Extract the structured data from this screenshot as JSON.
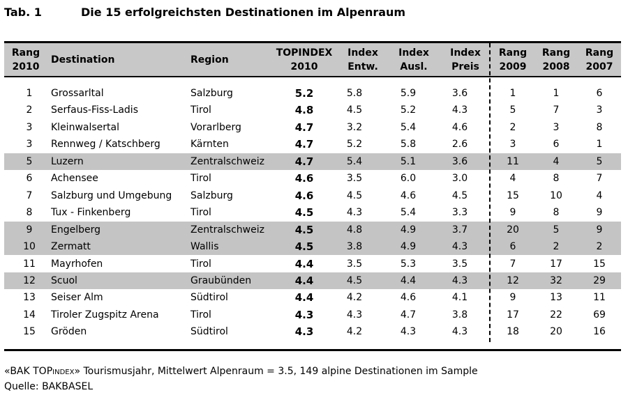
{
  "title": {
    "number": "Tab. 1",
    "text": "Die 15 erfolgreichsten Destinationen im Alpenraum"
  },
  "table": {
    "headers": {
      "rank": [
        "Rang",
        "2010"
      ],
      "destination": [
        "Destination"
      ],
      "region": [
        "Region"
      ],
      "topindex": [
        "TOPINDEX",
        "2010"
      ],
      "index_entw": [
        "Index",
        "Entw."
      ],
      "index_ausl": [
        "Index",
        "Ausl."
      ],
      "index_preis": [
        "Index",
        "Preis"
      ],
      "rang_2009": [
        "Rang",
        "2009"
      ],
      "rang_2008": [
        "Rang",
        "2008"
      ],
      "rang_2007": [
        "Rang",
        "2007"
      ]
    },
    "rows": [
      {
        "rank": "1",
        "destination": "Grossarltal",
        "region": "Salzburg",
        "topindex": "5.2",
        "index_entw": "5.8",
        "index_ausl": "5.9",
        "index_preis": "3.6",
        "rang_2009": "1",
        "rang_2008": "1",
        "rang_2007": "6",
        "highlighted": false
      },
      {
        "rank": "2",
        "destination": "Serfaus-Fiss-Ladis",
        "region": "Tirol",
        "topindex": "4.8",
        "index_entw": "4.5",
        "index_ausl": "5.2",
        "index_preis": "4.3",
        "rang_2009": "5",
        "rang_2008": "7",
        "rang_2007": "3",
        "highlighted": false
      },
      {
        "rank": "3",
        "destination": "Kleinwalsertal",
        "region": "Vorarlberg",
        "topindex": "4.7",
        "index_entw": "3.2",
        "index_ausl": "5.4",
        "index_preis": "4.6",
        "rang_2009": "2",
        "rang_2008": "3",
        "rang_2007": "8",
        "highlighted": false
      },
      {
        "rank": "3",
        "destination": "Rennweg / Katschberg",
        "region": "Kärnten",
        "topindex": "4.7",
        "index_entw": "5.2",
        "index_ausl": "5.8",
        "index_preis": "2.6",
        "rang_2009": "3",
        "rang_2008": "6",
        "rang_2007": "1",
        "highlighted": false
      },
      {
        "rank": "5",
        "destination": "Luzern",
        "region": "Zentralschweiz",
        "topindex": "4.7",
        "index_entw": "5.4",
        "index_ausl": "5.1",
        "index_preis": "3.6",
        "rang_2009": "11",
        "rang_2008": "4",
        "rang_2007": "5",
        "highlighted": true
      },
      {
        "rank": "6",
        "destination": "Achensee",
        "region": "Tirol",
        "topindex": "4.6",
        "index_entw": "3.5",
        "index_ausl": "6.0",
        "index_preis": "3.0",
        "rang_2009": "4",
        "rang_2008": "8",
        "rang_2007": "7",
        "highlighted": false
      },
      {
        "rank": "7",
        "destination": "Salzburg und Umgebung",
        "region": "Salzburg",
        "topindex": "4.6",
        "index_entw": "4.5",
        "index_ausl": "4.6",
        "index_preis": "4.5",
        "rang_2009": "15",
        "rang_2008": "10",
        "rang_2007": "4",
        "highlighted": false
      },
      {
        "rank": "8",
        "destination": "Tux - Finkenberg",
        "region": "Tirol",
        "topindex": "4.5",
        "index_entw": "4.3",
        "index_ausl": "5.4",
        "index_preis": "3.3",
        "rang_2009": "9",
        "rang_2008": "8",
        "rang_2007": "9",
        "highlighted": false
      },
      {
        "rank": "9",
        "destination": "Engelberg",
        "region": "Zentralschweiz",
        "topindex": "4.5",
        "index_entw": "4.8",
        "index_ausl": "4.9",
        "index_preis": "3.7",
        "rang_2009": "20",
        "rang_2008": "5",
        "rang_2007": "9",
        "highlighted": true
      },
      {
        "rank": "10",
        "destination": "Zermatt",
        "region": "Wallis",
        "topindex": "4.5",
        "index_entw": "3.8",
        "index_ausl": "4.9",
        "index_preis": "4.3",
        "rang_2009": "6",
        "rang_2008": "2",
        "rang_2007": "2",
        "highlighted": true
      },
      {
        "rank": "11",
        "destination": "Mayrhofen",
        "region": "Tirol",
        "topindex": "4.4",
        "index_entw": "3.5",
        "index_ausl": "5.3",
        "index_preis": "3.5",
        "rang_2009": "7",
        "rang_2008": "17",
        "rang_2007": "15",
        "highlighted": false
      },
      {
        "rank": "12",
        "destination": "Scuol",
        "region": "Graubünden",
        "topindex": "4.4",
        "index_entw": "4.5",
        "index_ausl": "4.4",
        "index_preis": "4.3",
        "rang_2009": "12",
        "rang_2008": "32",
        "rang_2007": "29",
        "highlighted": true
      },
      {
        "rank": "13",
        "destination": "Seiser Alm",
        "region": "Südtirol",
        "topindex": "4.4",
        "index_entw": "4.2",
        "index_ausl": "4.6",
        "index_preis": "4.1",
        "rang_2009": "9",
        "rang_2008": "13",
        "rang_2007": "11",
        "highlighted": false
      },
      {
        "rank": "14",
        "destination": "Tiroler Zugspitz Arena",
        "region": "Tirol",
        "topindex": "4.3",
        "index_entw": "4.3",
        "index_ausl": "4.7",
        "index_preis": "3.8",
        "rang_2009": "17",
        "rang_2008": "22",
        "rang_2007": "69",
        "highlighted": false
      },
      {
        "rank": "15",
        "destination": "Gröden",
        "region": "Südtirol",
        "topindex": "4.3",
        "index_entw": "4.2",
        "index_ausl": "4.3",
        "index_preis": "4.3",
        "rang_2009": "18",
        "rang_2008": "20",
        "rang_2007": "16",
        "highlighted": false
      }
    ]
  },
  "footnote": {
    "prefix": "«BAK TOP",
    "smallcaps": "index",
    "suffix": "» Tourismusjahr, Mittelwert Alpenraum = 3.5, 149 alpine Destinationen im Sample",
    "source": "Quelle: BAKBASEL"
  },
  "colors": {
    "highlight_row": "#c4c4c4",
    "header_band": "#c8c8c8",
    "text": "#000000"
  }
}
